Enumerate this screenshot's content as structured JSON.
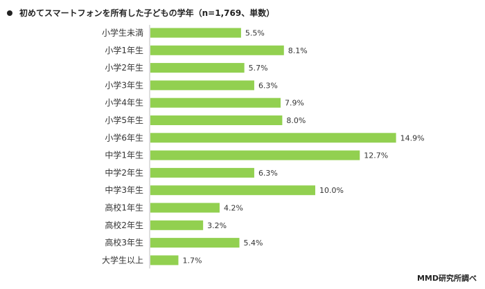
{
  "title": "初めてスマートフォンを所有した子どもの学年（n=1,769、単数）",
  "source": "MMD研究所調べ",
  "colors": {
    "bar": "#92d050"
  },
  "chart_data": {
    "type": "bar",
    "orientation": "horizontal",
    "categories": [
      "小学生未満",
      "小学1年生",
      "小学2年生",
      "小学3年生",
      "小学4年生",
      "小学5年生",
      "小学6年生",
      "中学1年生",
      "中学2年生",
      "中学3年生",
      "高校1年生",
      "高校2年生",
      "高校3年生",
      "大学生以上"
    ],
    "values": [
      5.5,
      8.1,
      5.7,
      6.3,
      7.9,
      8.0,
      14.9,
      12.7,
      6.3,
      10.0,
      4.2,
      3.2,
      5.4,
      1.7
    ],
    "value_labels": [
      "5.5%",
      "8.1%",
      "5.7%",
      "6.3%",
      "7.9%",
      "8.0%",
      "14.9%",
      "12.7%",
      "6.3%",
      "10.0%",
      "4.2%",
      "3.2%",
      "5.4%",
      "1.7%"
    ],
    "xlim": [
      0,
      16
    ],
    "grid": false,
    "legend": "none"
  }
}
